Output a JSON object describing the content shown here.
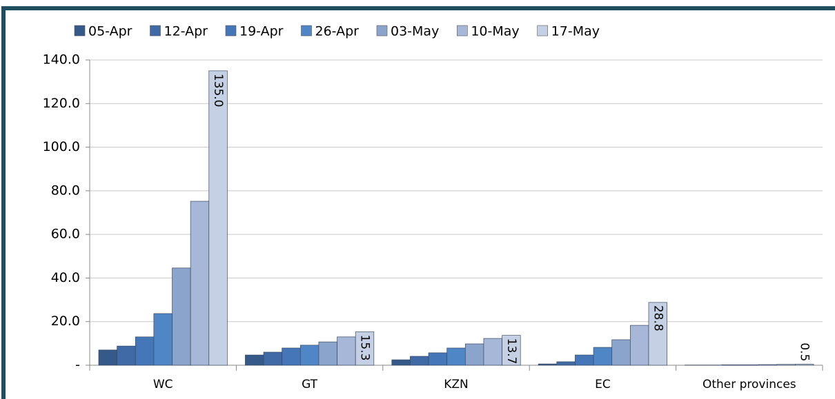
{
  "chart_data": {
    "type": "bar",
    "categories": [
      "WC",
      "GT",
      "KZN",
      "EC",
      "Other provinces"
    ],
    "series": [
      {
        "name": "05-Apr",
        "color": "#355a8a",
        "values": [
          7.0,
          4.7,
          2.5,
          0.6,
          0.1
        ]
      },
      {
        "name": "12-Apr",
        "color": "#3f6aa6",
        "values": [
          8.8,
          6.0,
          4.1,
          1.6,
          0.1
        ]
      },
      {
        "name": "19-Apr",
        "color": "#4577b8",
        "values": [
          13.0,
          7.9,
          5.7,
          4.7,
          0.2
        ]
      },
      {
        "name": "26-Apr",
        "color": "#4f86c6",
        "values": [
          23.7,
          9.2,
          7.9,
          8.2,
          0.2
        ]
      },
      {
        "name": "03-May",
        "color": "#8aa4cc",
        "values": [
          44.6,
          10.7,
          9.8,
          11.7,
          0.3
        ]
      },
      {
        "name": "10-May",
        "color": "#a6b7d8",
        "values": [
          75.2,
          13.0,
          12.3,
          18.3,
          0.4
        ]
      },
      {
        "name": "17-May",
        "color": "#c5d0e4",
        "values": [
          135.0,
          15.3,
          13.7,
          28.8,
          0.5
        ],
        "value_labels": [
          "135.0",
          "15.3",
          "13.7",
          "28.8",
          "0.5"
        ]
      }
    ],
    "ylim": [
      0,
      140
    ],
    "yticks": [
      {
        "value": 0,
        "label": "-"
      },
      {
        "value": 20,
        "label": "20.0"
      },
      {
        "value": 40,
        "label": "40.0"
      },
      {
        "value": 60,
        "label": "60.0"
      },
      {
        "value": 80,
        "label": "80.0"
      },
      {
        "value": 100,
        "label": "100.0"
      },
      {
        "value": 120,
        "label": "120.0"
      },
      {
        "value": 140,
        "label": "140.0"
      }
    ],
    "grid": true,
    "legend": "top"
  }
}
